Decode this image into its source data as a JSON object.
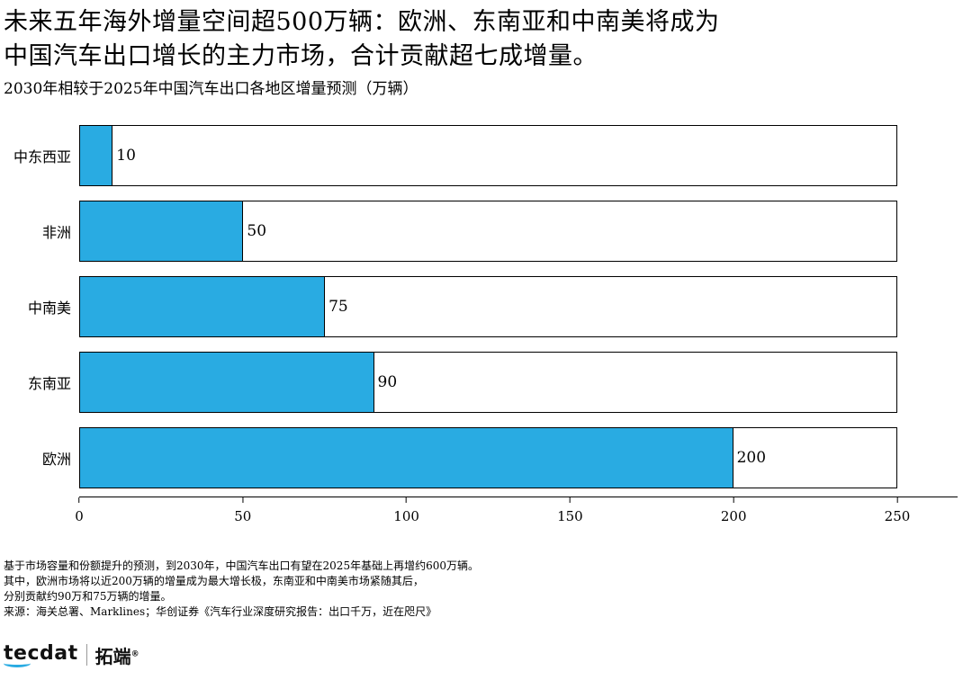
{
  "title": {
    "line1": "未来五年海外增量空间超500万辆：欧洲、东南亚和中南美将成为",
    "line2": "中国汽车出口增长的主力市场，合计贡献超七成增量。",
    "subtitle": "2030年相较于2025年中国汽车出口各地区增量预测（万辆）"
  },
  "chart_data": {
    "type": "bar",
    "orientation": "horizontal",
    "title": "2030年相较于2025年中国汽车出口各地区增量预测（万辆）",
    "categories": [
      "中东西亚",
      "非洲",
      "中南美",
      "东南亚",
      "欧洲"
    ],
    "values": [
      10,
      50,
      75,
      90,
      200
    ],
    "xlim": [
      0,
      250
    ],
    "xticks": [
      0,
      50,
      100,
      150,
      200,
      250
    ],
    "xlabel": "",
    "ylabel": "",
    "grid": false,
    "legend": "none",
    "bar_color": "#29ABE2",
    "track_color": "#FFFFFF",
    "border_color": "#000000",
    "value_labels": [
      "10",
      "50",
      "75",
      "90",
      "200"
    ]
  },
  "notes": [
    "基于市场容量和份额提升的预测，到2030年，中国汽车出口有望在2025年基础上再增约600万辆。",
    "其中，欧洲市场将以近200万辆的增量成为最大增长极，东南亚和中南美市场紧随其后，",
    "分别贡献约90万和75万辆的增量。",
    "来源：海关总署、Marklines；华创证券《汽车行业深度研究报告：出口千万，近在咫尺》"
  ],
  "logo": {
    "brand": "tecdat",
    "brand_cn": "拓端",
    "reg": "®"
  }
}
